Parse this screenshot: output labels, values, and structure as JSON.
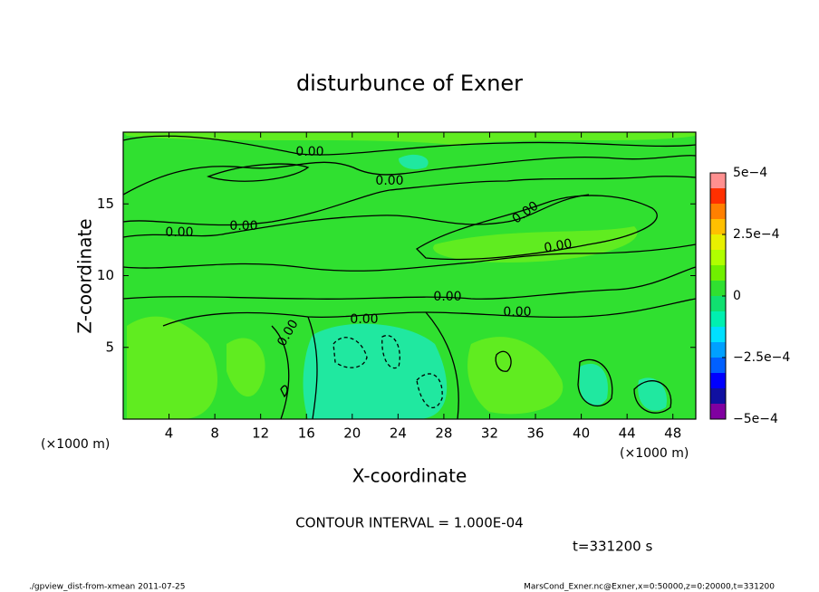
{
  "chart_data": {
    "type": "contour",
    "title": "disturbunce of Exner",
    "xlabel": "X-coordinate",
    "ylabel": "Z-coordinate",
    "xunit_labels": [
      "(×1000 m)",
      "(×1000 m)"
    ],
    "xlim": [
      0,
      50
    ],
    "xticks": [
      4,
      8,
      12,
      16,
      20,
      24,
      28,
      32,
      36,
      40,
      44,
      48
    ],
    "ylim": [
      0,
      20
    ],
    "yticks": [
      5,
      10,
      15
    ],
    "contour_labels": [
      "0.00",
      "0.00",
      "0.00",
      "0.00",
      "0.00",
      "0.00",
      "0.00",
      "0.00",
      "0.00",
      "0.00"
    ],
    "contour_interval": "CONTOUR INTERVAL = 1.000E-04",
    "time_label": "t=331200 s",
    "footer_left": "./gpview_dist-from-xmean  2011-07-25",
    "footer_right": "MarsCond_Exner.nc@Exner,x=0:50000,z=0:20000,t=331200",
    "colorbar": {
      "levels": [
        -0.0005,
        -0.0004375,
        -0.000375,
        -0.0003125,
        -0.00025,
        -0.0001875,
        -0.000125,
        -6.25e-05,
        0,
        6.25e-05,
        0.000125,
        0.0001875,
        0.00025,
        0.0003125,
        0.000375,
        0.0004375,
        0.0005
      ],
      "colors": [
        "#8000a0",
        "#1010a0",
        "#0000ff",
        "#0060ff",
        "#00a0ff",
        "#00e0ff",
        "#00f0b0",
        "#10e070",
        "#30e030",
        "#70f000",
        "#b0ff00",
        "#e8f000",
        "#ffc000",
        "#ff8000",
        "#ff3000",
        "#ff9090"
      ],
      "ticks": [
        {
          "value": -0.0005,
          "label": "−5e−4"
        },
        {
          "value": -0.00025,
          "label": "−2.5e−4"
        },
        {
          "value": 0,
          "label": "0"
        },
        {
          "value": 0.00025,
          "label": "2.5e−4"
        },
        {
          "value": 0.0005,
          "label": "5e−4"
        }
      ]
    }
  }
}
